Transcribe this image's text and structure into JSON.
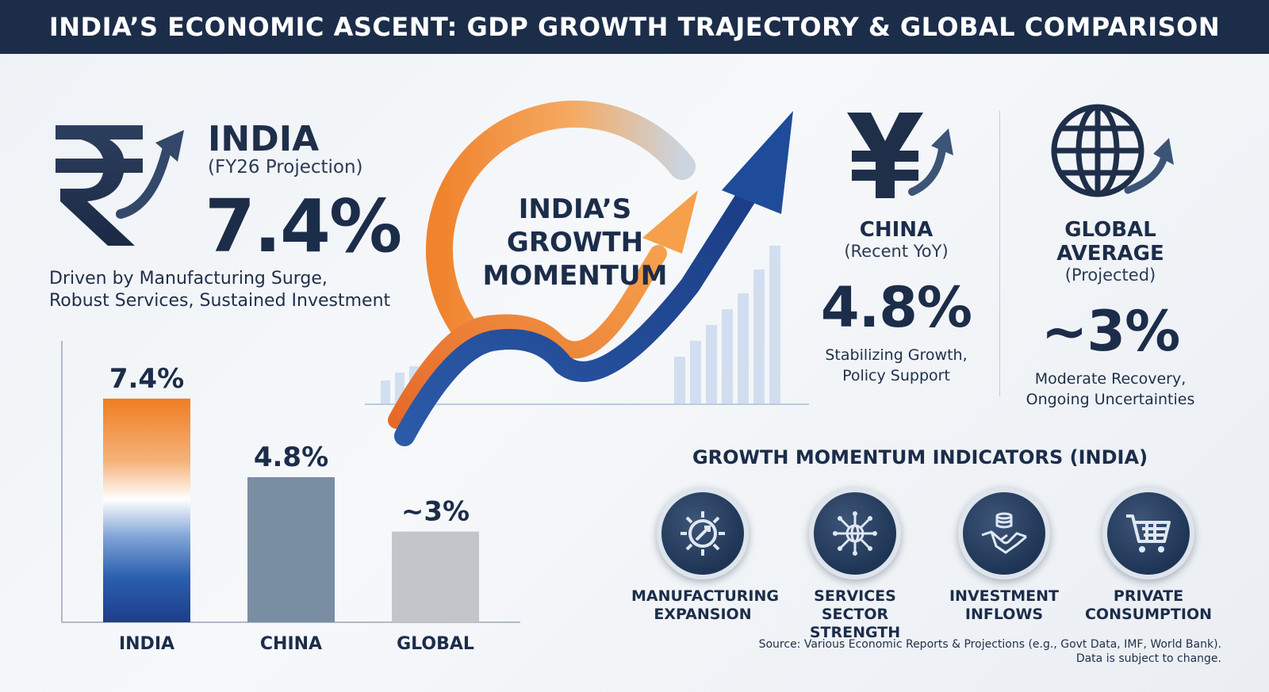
{
  "title": "INDIA’S ECONOMIC ASCENT: GDP GROWTH TRAJECTORY & GLOBAL COMPARISON",
  "india": {
    "label": "INDIA",
    "sub": "(FY26 Projection)",
    "value": "7.4%",
    "desc_line1": "Driven by Manufacturing Surge,",
    "desc_line2": "Robust Services, Sustained Investment"
  },
  "center": {
    "line1": "INDIA’S",
    "line2": "GROWTH",
    "line3": "MOMENTUM"
  },
  "china": {
    "label": "CHINA",
    "sub": "(Recent YoY)",
    "value": "4.8%",
    "desc_line1": "Stabilizing Growth,",
    "desc_line2": "Policy Support"
  },
  "global": {
    "label": "GLOBAL AVERAGE",
    "sub": "(Projected)",
    "value": "~3%",
    "desc_line1": "Moderate Recovery,",
    "desc_line2": "Ongoing Uncertainties"
  },
  "indicators": {
    "title": "GROWTH MOMENTUM INDICATORS (INDIA)",
    "items": [
      {
        "line1": "MANUFACTURING",
        "line2": "EXPANSION",
        "icon": "gear-icon"
      },
      {
        "line1": "SERVICES SECTOR",
        "line2": "STRENGTH",
        "icon": "network-globe-icon"
      },
      {
        "line1": "INVESTMENT",
        "line2": "INFLOWS",
        "icon": "handshake-icon"
      },
      {
        "line1": "PRIVATE",
        "line2": "CONSUMPTION",
        "icon": "shopping-cart-icon"
      }
    ]
  },
  "source": {
    "line1": "Source: Various Economic Reports & Projections (e.g., Govt Data, IMF, World Bank).",
    "line2": "Data is subject to change."
  },
  "colors": {
    "navy": "#1c2d4a",
    "orange": "#f28a2e",
    "blue": "#1e4c9a",
    "china_bar": "#7a8ea3",
    "global_bar": "#c2c5c9"
  },
  "chart_data": {
    "type": "bar",
    "categories": [
      "INDIA",
      "CHINA",
      "GLOBAL"
    ],
    "values": [
      7.4,
      4.8,
      3
    ],
    "value_labels": [
      "7.4%",
      "4.8%",
      "~3%"
    ],
    "ylim": [
      0,
      8
    ],
    "grid": false
  }
}
